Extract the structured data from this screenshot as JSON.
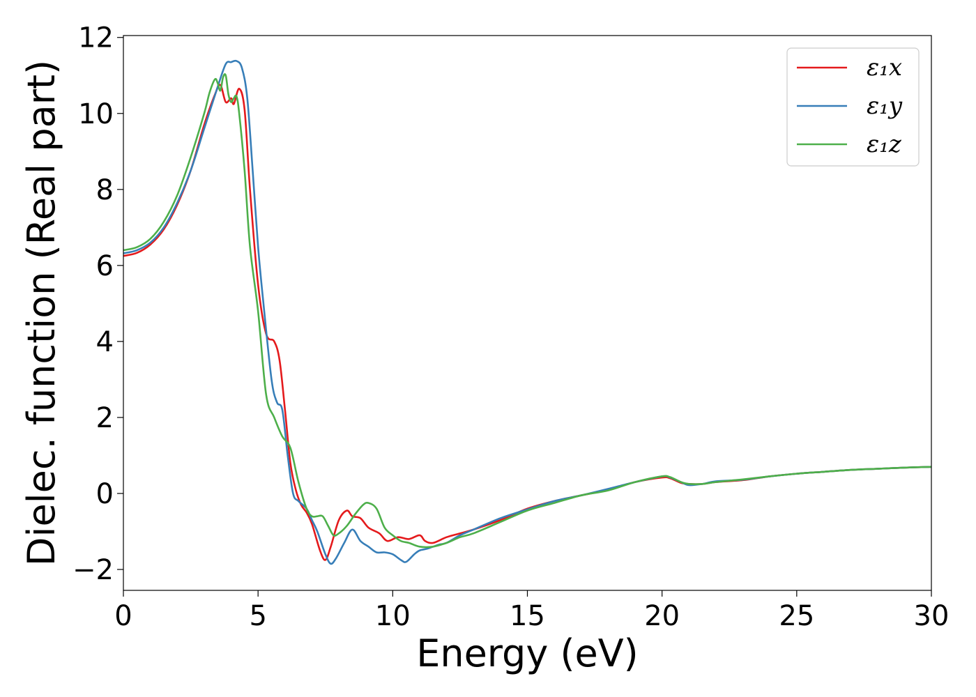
{
  "chart_data": {
    "type": "line",
    "title": "",
    "xlabel": "Energy (eV)",
    "ylabel": "Dielec. function (Real part)",
    "xlim": [
      0,
      30
    ],
    "ylim": [
      -2.55,
      12.05
    ],
    "xticks": [
      0,
      5,
      10,
      15,
      20,
      25,
      30
    ],
    "yticks": [
      -2,
      0,
      2,
      4,
      6,
      8,
      10,
      12
    ],
    "xtick_labels": [
      "0",
      "5",
      "10",
      "15",
      "20",
      "25",
      "30"
    ],
    "ytick_labels": [
      "−2",
      "0",
      "2",
      "4",
      "6",
      "8",
      "10",
      "12"
    ],
    "grid": false,
    "legend_position": "top-right",
    "series": [
      {
        "name": "ε₁x",
        "color": "#e41a1c",
        "x": [
          0,
          0.5,
          1,
          1.5,
          2,
          2.5,
          3,
          3.4,
          3.6,
          3.8,
          4.0,
          4.1,
          4.3,
          4.5,
          4.7,
          5.0,
          5.3,
          5.6,
          5.8,
          6.0,
          6.2,
          6.4,
          6.6,
          6.8,
          7.0,
          7.3,
          7.5,
          7.7,
          8.0,
          8.3,
          8.5,
          8.8,
          9.1,
          9.5,
          9.8,
          10.2,
          10.6,
          11.0,
          11.2,
          11.5,
          12.0,
          12.5,
          13.0,
          14.0,
          15.0,
          16.0,
          17.0,
          18.0,
          19.0,
          20.0,
          20.3,
          20.7,
          21.0,
          21.5,
          22.0,
          23.0,
          24.0,
          25.0,
          26.0,
          27.0,
          28.0,
          29.0,
          30.0
        ],
        "values": [
          6.25,
          6.33,
          6.55,
          6.95,
          7.6,
          8.5,
          9.7,
          10.5,
          10.75,
          10.3,
          10.4,
          10.25,
          10.65,
          10.1,
          8.0,
          5.5,
          4.2,
          4.0,
          3.5,
          2.2,
          0.8,
          0.1,
          -0.3,
          -0.5,
          -0.8,
          -1.5,
          -1.75,
          -1.4,
          -0.7,
          -0.45,
          -0.6,
          -0.65,
          -0.9,
          -1.05,
          -1.25,
          -1.15,
          -1.2,
          -1.1,
          -1.25,
          -1.3,
          -1.15,
          -1.05,
          -0.95,
          -0.7,
          -0.4,
          -0.2,
          -0.05,
          0.1,
          0.3,
          0.42,
          0.4,
          0.28,
          0.25,
          0.25,
          0.3,
          0.35,
          0.45,
          0.52,
          0.57,
          0.62,
          0.65,
          0.68,
          0.7
        ]
      },
      {
        "name": "ε₁y",
        "color": "#377eb8",
        "x": [
          0,
          0.5,
          1,
          1.5,
          2,
          2.5,
          3,
          3.5,
          3.8,
          4.0,
          4.2,
          4.4,
          4.6,
          4.8,
          5.0,
          5.2,
          5.5,
          5.7,
          5.9,
          6.1,
          6.3,
          6.5,
          6.8,
          7.0,
          7.2,
          7.5,
          7.7,
          7.9,
          8.2,
          8.5,
          8.8,
          9.1,
          9.4,
          9.7,
          10.0,
          10.3,
          10.5,
          10.8,
          11.0,
          11.3,
          11.7,
          12.0,
          12.5,
          13.0,
          14.0,
          15.0,
          16.0,
          17.0,
          18.0,
          19.0,
          20.0,
          20.3,
          20.7,
          21.0,
          21.5,
          22.0,
          23.0,
          24.0,
          25.0,
          26.0,
          27.0,
          28.0,
          29.0,
          30.0
        ],
        "values": [
          6.32,
          6.4,
          6.6,
          7.0,
          7.65,
          8.5,
          9.6,
          10.7,
          11.3,
          11.35,
          11.38,
          11.2,
          10.4,
          8.5,
          6.5,
          5.0,
          3.0,
          2.4,
          2.2,
          1.0,
          0.0,
          -0.2,
          -0.4,
          -0.7,
          -1.0,
          -1.6,
          -1.85,
          -1.7,
          -1.3,
          -0.95,
          -1.25,
          -1.4,
          -1.55,
          -1.55,
          -1.6,
          -1.75,
          -1.8,
          -1.6,
          -1.5,
          -1.45,
          -1.35,
          -1.3,
          -1.1,
          -0.95,
          -0.65,
          -0.42,
          -0.2,
          -0.05,
          0.12,
          0.3,
          0.45,
          0.42,
          0.3,
          0.22,
          0.25,
          0.32,
          0.36,
          0.45,
          0.52,
          0.57,
          0.62,
          0.65,
          0.68,
          0.7
        ]
      },
      {
        "name": "ε₁z",
        "color": "#4daf4a",
        "x": [
          0,
          0.5,
          1,
          1.5,
          2,
          2.5,
          3.0,
          3.2,
          3.4,
          3.5,
          3.6,
          3.7,
          3.8,
          3.9,
          4.0,
          4.1,
          4.2,
          4.3,
          4.5,
          4.7,
          5.0,
          5.3,
          5.6,
          5.9,
          6.2,
          6.5,
          6.8,
          7.0,
          7.2,
          7.4,
          7.6,
          7.8,
          8.0,
          8.3,
          8.6,
          8.9,
          9.1,
          9.4,
          9.7,
          10.0,
          10.3,
          10.6,
          11.0,
          11.5,
          12.0,
          12.5,
          13.0,
          14.0,
          15.0,
          16.0,
          17.0,
          18.0,
          19.0,
          20.0,
          20.3,
          20.7,
          21.0,
          21.5,
          22.0,
          23.0,
          24.0,
          25.0,
          26.0,
          27.0,
          28.0,
          29.0,
          30.0
        ],
        "values": [
          6.4,
          6.48,
          6.7,
          7.15,
          7.85,
          8.85,
          10.0,
          10.55,
          10.9,
          10.8,
          10.6,
          10.95,
          11.0,
          10.5,
          10.3,
          10.4,
          10.45,
          10.0,
          8.5,
          6.5,
          4.8,
          2.6,
          2.0,
          1.5,
          1.2,
          0.3,
          -0.4,
          -0.6,
          -0.6,
          -0.6,
          -0.85,
          -1.1,
          -1.05,
          -0.85,
          -0.55,
          -0.3,
          -0.25,
          -0.4,
          -0.9,
          -1.1,
          -1.25,
          -1.3,
          -1.4,
          -1.4,
          -1.3,
          -1.15,
          -1.05,
          -0.75,
          -0.45,
          -0.25,
          -0.05,
          0.08,
          0.3,
          0.45,
          0.43,
          0.3,
          0.25,
          0.25,
          0.3,
          0.37,
          0.45,
          0.52,
          0.57,
          0.62,
          0.65,
          0.68,
          0.7
        ]
      }
    ]
  }
}
